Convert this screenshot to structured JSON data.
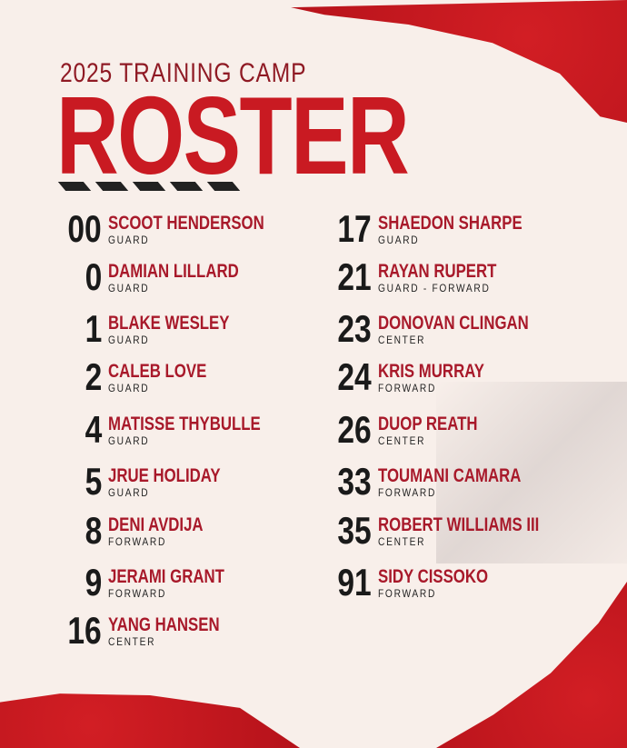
{
  "header": {
    "subtitle": "2025 TRAINING CAMP",
    "title": "ROSTER"
  },
  "colors": {
    "accent": "#c91a22",
    "name": "#a8192a",
    "number": "#1a1a1a",
    "background": "#f8efea"
  },
  "roster": {
    "left": [
      {
        "number": "00",
        "name": "SCOOT HENDERSON",
        "position": "GUARD"
      },
      {
        "number": "0",
        "name": "DAMIAN LILLARD",
        "position": "GUARD"
      },
      {
        "number": "1",
        "name": "BLAKE WESLEY",
        "position": "GUARD"
      },
      {
        "number": "2",
        "name": "CALEB LOVE",
        "position": "GUARD"
      },
      {
        "number": "4",
        "name": "MATISSE THYBULLE",
        "position": "GUARD"
      },
      {
        "number": "5",
        "name": "JRUE HOLIDAY",
        "position": "GUARD"
      },
      {
        "number": "8",
        "name": "DENI AVDIJA",
        "position": "FORWARD"
      },
      {
        "number": "9",
        "name": "JERAMI GRANT",
        "position": "FORWARD"
      },
      {
        "number": "16",
        "name": "YANG HANSEN",
        "position": "CENTER"
      }
    ],
    "right": [
      {
        "number": "17",
        "name": "SHAEDON SHARPE",
        "position": "GUARD"
      },
      {
        "number": "21",
        "name": "RAYAN RUPERT",
        "position": "GUARD - FORWARD"
      },
      {
        "number": "23",
        "name": "DONOVAN CLINGAN",
        "position": "CENTER"
      },
      {
        "number": "24",
        "name": "KRIS MURRAY",
        "position": "FORWARD"
      },
      {
        "number": "26",
        "name": "DUOP REATH",
        "position": "CENTER"
      },
      {
        "number": "33",
        "name": "TOUMANI CAMARA",
        "position": "FORWARD"
      },
      {
        "number": "35",
        "name": "ROBERT WILLIAMS III",
        "position": "CENTER"
      },
      {
        "number": "91",
        "name": "SIDY CISSOKO",
        "position": "FORWARD"
      }
    ]
  }
}
